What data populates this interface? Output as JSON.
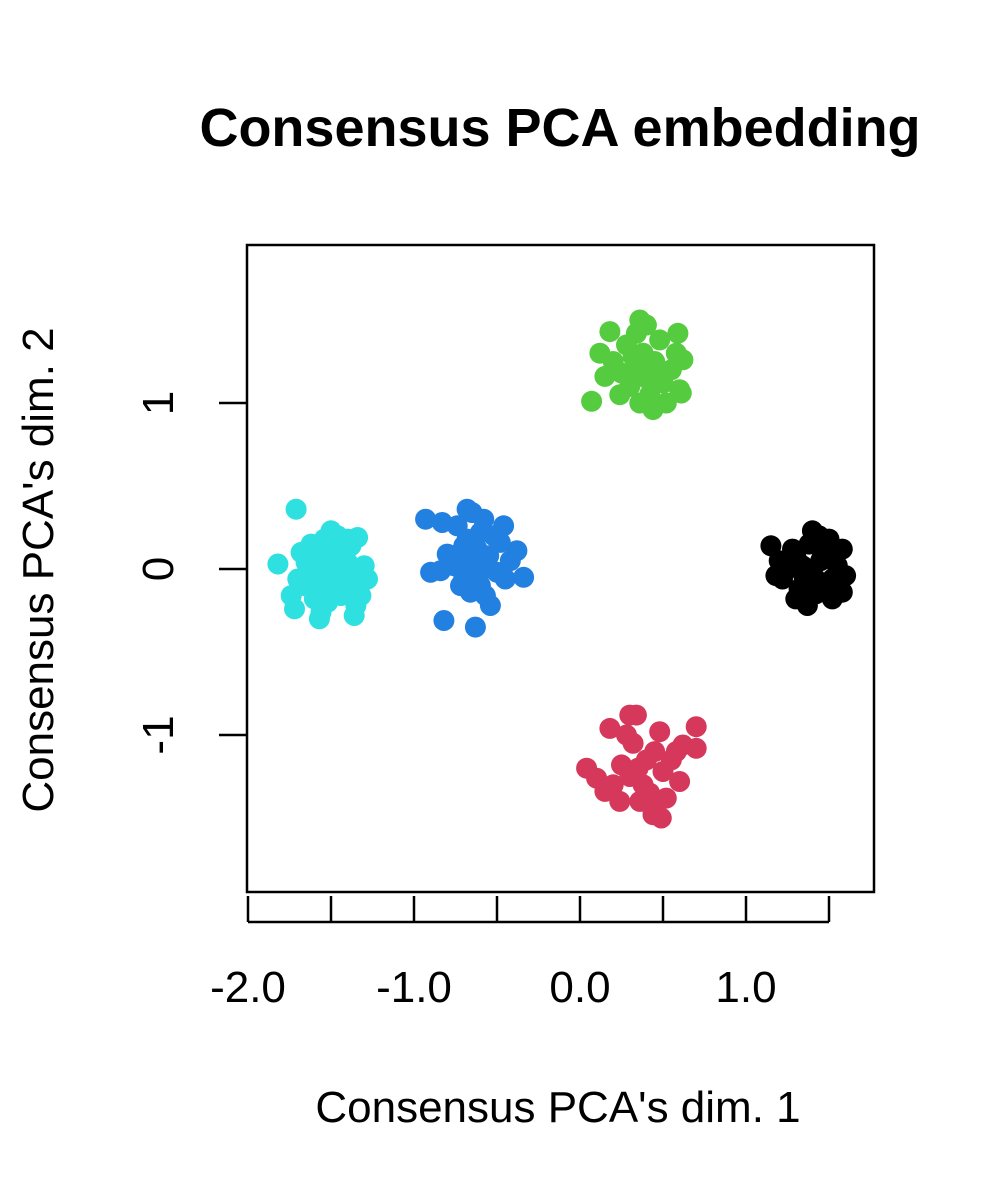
{
  "chart_data": {
    "type": "scatter",
    "title": "Consensus PCA embedding",
    "xlabel": "Consensus PCA's dim. 1",
    "ylabel": "Consensus PCA's dim. 2",
    "xlim": [
      -2.0,
      1.75
    ],
    "ylim": [
      -1.95,
      1.95
    ],
    "x_ticks": [
      -2.0,
      -1.5,
      -1.0,
      -0.5,
      0.0,
      0.5,
      1.0,
      1.5
    ],
    "x_tick_labels": [
      "-2.0",
      "",
      "-1.0",
      "",
      "0.0",
      "",
      "1.0",
      ""
    ],
    "y_ticks": [
      -1,
      0,
      1
    ],
    "y_tick_labels": [
      "-1",
      "0",
      "1"
    ],
    "grid": false,
    "legend": "none",
    "series": [
      {
        "color": "#2ee0e0",
        "points": [
          [
            -1.56,
            0.02
          ],
          [
            -1.5,
            0.06
          ],
          [
            -1.45,
            0.0
          ],
          [
            -1.52,
            -0.05
          ],
          [
            -1.6,
            0.08
          ],
          [
            -1.48,
            0.12
          ],
          [
            -1.42,
            -0.1
          ],
          [
            -1.58,
            -0.12
          ],
          [
            -1.4,
            0.04
          ],
          [
            -1.62,
            -0.02
          ],
          [
            -1.54,
            0.18
          ],
          [
            -1.46,
            0.2
          ],
          [
            -1.38,
            0.14
          ],
          [
            -1.36,
            -0.04
          ],
          [
            -1.33,
            -0.08
          ],
          [
            -1.3,
            0.02
          ],
          [
            -1.65,
            0.04
          ],
          [
            -1.68,
            0.1
          ],
          [
            -1.7,
            -0.06
          ],
          [
            -1.44,
            -0.16
          ],
          [
            -1.52,
            -0.2
          ],
          [
            -1.6,
            -0.18
          ],
          [
            -1.35,
            -0.22
          ],
          [
            -1.4,
            0.18
          ],
          [
            -1.5,
            0.23
          ],
          [
            -1.56,
            -0.26
          ],
          [
            -1.74,
            -0.16
          ],
          [
            -1.72,
            -0.24
          ],
          [
            -1.36,
            -0.28
          ],
          [
            -1.57,
            -0.3
          ],
          [
            -1.82,
            0.03
          ],
          [
            -1.71,
            0.36
          ],
          [
            -1.34,
            0.19
          ],
          [
            -1.48,
            -0.12
          ],
          [
            -1.44,
            0.08
          ],
          [
            -1.62,
            0.15
          ],
          [
            -1.28,
            -0.06
          ],
          [
            -1.32,
            -0.16
          ],
          [
            -1.66,
            -0.1
          ],
          [
            -1.54,
            0.1
          ]
        ]
      },
      {
        "color": "#2280e0",
        "points": [
          [
            -0.65,
            0.05
          ],
          [
            -0.58,
            0.0
          ],
          [
            -0.7,
            -0.05
          ],
          [
            -0.62,
            0.12
          ],
          [
            -0.55,
            0.08
          ],
          [
            -0.72,
            0.1
          ],
          [
            -0.6,
            -0.1
          ],
          [
            -0.5,
            -0.02
          ],
          [
            -0.68,
            0.18
          ],
          [
            -0.76,
            0.02
          ],
          [
            -0.8,
            0.09
          ],
          [
            -0.48,
            0.16
          ],
          [
            -0.66,
            -0.14
          ],
          [
            -0.57,
            -0.16
          ],
          [
            -0.45,
            -0.06
          ],
          [
            -0.42,
            0.05
          ],
          [
            -0.38,
            0.11
          ],
          [
            -0.34,
            -0.05
          ],
          [
            -0.84,
            -0.01
          ],
          [
            -0.6,
            0.22
          ],
          [
            -0.54,
            -0.22
          ],
          [
            -0.65,
            0.34
          ],
          [
            -0.83,
            0.28
          ],
          [
            -0.93,
            0.3
          ],
          [
            -0.9,
            -0.02
          ],
          [
            -0.46,
            0.26
          ],
          [
            -0.68,
            0.36
          ],
          [
            -0.63,
            -0.35
          ],
          [
            -0.82,
            -0.31
          ],
          [
            -0.72,
            -0.1
          ],
          [
            -0.52,
            0.2
          ],
          [
            -0.74,
            0.26
          ],
          [
            -0.58,
            0.3
          ],
          [
            -0.62,
            -0.06
          ],
          [
            -0.7,
            0.14
          ]
        ]
      },
      {
        "color": "#55cc3f",
        "points": [
          [
            0.35,
            1.2
          ],
          [
            0.4,
            1.15
          ],
          [
            0.3,
            1.1
          ],
          [
            0.45,
            1.25
          ],
          [
            0.38,
            1.3
          ],
          [
            0.25,
            1.18
          ],
          [
            0.5,
            1.12
          ],
          [
            0.42,
            1.05
          ],
          [
            0.32,
            1.28
          ],
          [
            0.55,
            1.2
          ],
          [
            0.28,
            1.35
          ],
          [
            0.48,
            1.38
          ],
          [
            0.2,
            1.25
          ],
          [
            0.6,
            1.08
          ],
          [
            0.36,
            1.0
          ],
          [
            0.44,
            0.96
          ],
          [
            0.58,
            1.3
          ],
          [
            0.62,
            1.26
          ],
          [
            0.15,
            1.16
          ],
          [
            0.12,
            1.3
          ],
          [
            0.4,
            1.47
          ],
          [
            0.36,
            1.5
          ],
          [
            0.59,
            1.42
          ],
          [
            0.18,
            1.43
          ],
          [
            0.07,
            1.01
          ],
          [
            0.61,
            1.06
          ],
          [
            0.24,
            1.05
          ],
          [
            0.52,
            1.0
          ],
          [
            0.34,
            1.42
          ],
          [
            0.46,
            1.2
          ]
        ]
      },
      {
        "color": "#d5385a",
        "points": [
          [
            0.35,
            -1.2
          ],
          [
            0.4,
            -1.15
          ],
          [
            0.3,
            -1.25
          ],
          [
            0.45,
            -1.1
          ],
          [
            0.38,
            -1.3
          ],
          [
            0.25,
            -1.18
          ],
          [
            0.5,
            -1.22
          ],
          [
            0.42,
            -1.35
          ],
          [
            0.32,
            -1.05
          ],
          [
            0.55,
            -1.15
          ],
          [
            0.28,
            -1.0
          ],
          [
            0.48,
            -0.98
          ],
          [
            0.2,
            -1.3
          ],
          [
            0.6,
            -1.28
          ],
          [
            0.36,
            -1.4
          ],
          [
            0.44,
            -1.45
          ],
          [
            0.58,
            -1.1
          ],
          [
            0.62,
            -1.06
          ],
          [
            0.18,
            -0.96
          ],
          [
            0.3,
            -0.88
          ],
          [
            0.34,
            -0.88
          ],
          [
            0.7,
            -0.95
          ],
          [
            0.7,
            -1.08
          ],
          [
            0.04,
            -1.2
          ],
          [
            0.1,
            -1.26
          ],
          [
            0.15,
            -1.34
          ],
          [
            0.49,
            -1.5
          ],
          [
            0.44,
            -1.48
          ],
          [
            0.24,
            -1.4
          ],
          [
            0.52,
            -1.38
          ]
        ]
      },
      {
        "color": "#000000",
        "points": [
          [
            1.4,
            0.0
          ],
          [
            1.45,
            0.05
          ],
          [
            1.35,
            -0.05
          ],
          [
            1.5,
            0.1
          ],
          [
            1.38,
            0.15
          ],
          [
            1.3,
            0.08
          ],
          [
            1.48,
            -0.1
          ],
          [
            1.42,
            -0.15
          ],
          [
            1.32,
            -0.12
          ],
          [
            1.55,
            0.02
          ],
          [
            1.25,
            0.0
          ],
          [
            1.52,
            -0.06
          ],
          [
            1.28,
            0.12
          ],
          [
            1.44,
            0.2
          ],
          [
            1.36,
            -0.2
          ],
          [
            1.58,
            0.12
          ],
          [
            1.6,
            -0.04
          ],
          [
            1.22,
            -0.06
          ],
          [
            1.2,
            0.05
          ],
          [
            1.18,
            -0.04
          ],
          [
            1.4,
            0.23
          ],
          [
            1.37,
            -0.22
          ],
          [
            1.52,
            -0.18
          ],
          [
            1.58,
            -0.14
          ],
          [
            1.5,
            0.18
          ],
          [
            1.15,
            0.14
          ],
          [
            1.3,
            -0.18
          ],
          [
            1.46,
            0.1
          ],
          [
            1.34,
            0.02
          ],
          [
            1.42,
            -0.06
          ]
        ]
      }
    ]
  }
}
